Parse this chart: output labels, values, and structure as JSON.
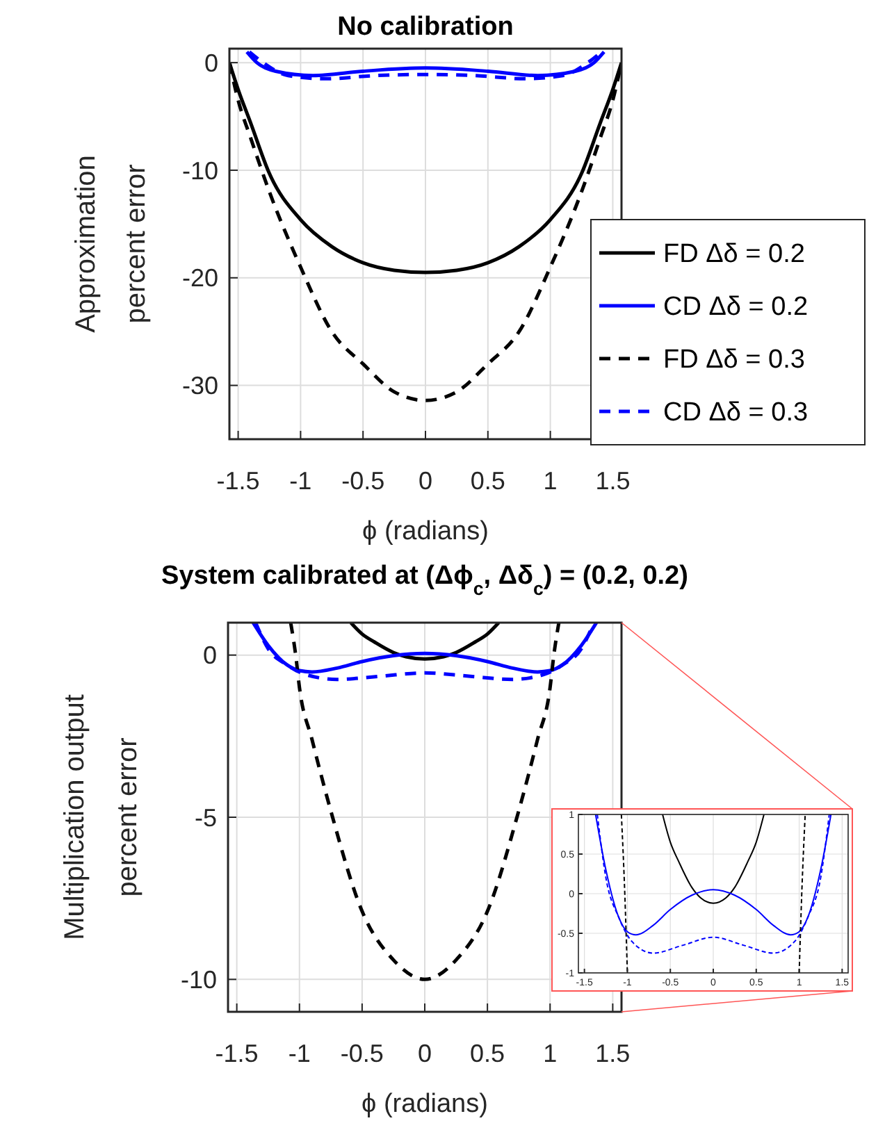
{
  "chart_data": [
    {
      "type": "line",
      "title": "No calibration",
      "xlabel": "ϕ (radians)",
      "ylabel": "Approximation\npercent error",
      "xlim": [
        -1.57,
        1.57
      ],
      "ylim": [
        -35,
        1.3
      ],
      "xticks": [
        -1.5,
        -1,
        -0.5,
        0,
        0.5,
        1,
        1.5
      ],
      "yticks": [
        0,
        -10,
        -20,
        -30
      ],
      "grid": true,
      "legend": "right",
      "series": [
        {
          "name": "FD Δδ = 0.2",
          "color": "#000000",
          "line_style": "solid",
          "x": [
            -1.57,
            -1.5,
            -1.4,
            -1.25,
            -1,
            -0.75,
            -0.5,
            -0.25,
            0,
            0.25,
            0.5,
            0.75,
            1,
            1.25,
            1.4,
            1.5,
            1.57
          ],
          "values": [
            0,
            -2.5,
            -5.6,
            -10.3,
            -14.6,
            -17.1,
            -18.6,
            -19.3,
            -19.5,
            -19.3,
            -18.6,
            -17.1,
            -14.6,
            -10.3,
            -5.6,
            -2.5,
            0
          ]
        },
        {
          "name": "CD Δδ = 0.2",
          "color": "#0000ff",
          "line_style": "solid",
          "x": [
            -1.43,
            -1.35,
            -1.2,
            -0.9,
            -0.5,
            0,
            0.5,
            0.9,
            1.2,
            1.35,
            1.43
          ],
          "values": [
            1,
            0,
            -0.8,
            -1.2,
            -0.8,
            -0.5,
            -0.8,
            -1.2,
            -0.8,
            0,
            1
          ]
        },
        {
          "name": "FD Δδ = 0.3",
          "color": "#000000",
          "line_style": "dashed",
          "x": [
            -1.57,
            -1.5,
            -1.4,
            -1.25,
            -1,
            -0.75,
            -0.5,
            -0.25,
            0,
            0.25,
            0.5,
            0.75,
            1,
            1.25,
            1.4,
            1.5,
            1.57
          ],
          "values": [
            0,
            -3.5,
            -7,
            -12,
            -19,
            -25,
            -28,
            -30.6,
            -31.4,
            -30.6,
            -28,
            -25,
            -19,
            -12,
            -7,
            -3.5,
            0
          ]
        },
        {
          "name": "CD Δδ = 0.3",
          "color": "#0000ff",
          "line_style": "dashed",
          "x": [
            -1.41,
            -1.3,
            -1.1,
            -0.8,
            -0.4,
            0,
            0.4,
            0.8,
            1.1,
            1.3,
            1.41
          ],
          "values": [
            1,
            0,
            -1.2,
            -1.5,
            -1.2,
            -1.1,
            -1.2,
            -1.5,
            -1.2,
            0,
            1
          ]
        }
      ]
    },
    {
      "type": "line",
      "title": "System calibrated at (Δϕ$_{c}$, Δδ$_{c}$) = (0.2, 0.2)",
      "xlabel": "ϕ (radians)",
      "ylabel": "Multiplication output\npercent error",
      "xlim": [
        -1.57,
        1.57
      ],
      "ylim": [
        -11,
        1
      ],
      "xticks": [
        -1.5,
        -1,
        -0.5,
        0,
        0.5,
        1,
        1.5
      ],
      "yticks": [
        0,
        -5,
        -10
      ],
      "grid": true,
      "series": [
        {
          "color": "#000000",
          "line_style": "solid",
          "x": [
            -0.59,
            -0.5,
            -0.4,
            -0.25,
            -0.15,
            0,
            0.15,
            0.25,
            0.4,
            0.5,
            0.59
          ],
          "values": [
            1,
            0.65,
            0.4,
            0.08,
            -0.05,
            -0.12,
            -0.05,
            0.08,
            0.4,
            0.65,
            1
          ]
        },
        {
          "color": "#0000ff",
          "line_style": "solid",
          "x": [
            -1.37,
            -1.25,
            -1.1,
            -1,
            -0.9,
            -0.7,
            -0.5,
            -0.25,
            0,
            0.25,
            0.5,
            0.7,
            0.9,
            1,
            1.1,
            1.25,
            1.37
          ],
          "values": [
            1,
            0.3,
            -0.3,
            -0.48,
            -0.52,
            -0.4,
            -0.2,
            -0.02,
            0.05,
            -0.02,
            -0.2,
            -0.4,
            -0.52,
            -0.48,
            -0.3,
            0.3,
            1
          ]
        },
        {
          "color": "#000000",
          "line_style": "dashed",
          "x": [
            -1.07,
            -1.03,
            -1,
            -0.9,
            -0.75,
            -0.5,
            -0.25,
            0,
            0.25,
            0.5,
            0.75,
            0.9,
            1,
            1.03,
            1.07
          ],
          "values": [
            1,
            0,
            -1,
            -2.6,
            -4.8,
            -7.9,
            -9.4,
            -10,
            -9.4,
            -7.9,
            -4.8,
            -2.6,
            -1,
            0,
            1
          ]
        },
        {
          "color": "#0000ff",
          "line_style": "dashed",
          "x": [
            -1.35,
            -1.25,
            -1.1,
            -0.95,
            -0.7,
            -0.35,
            0,
            0.35,
            0.7,
            0.95,
            1.1,
            1.25,
            1.35
          ],
          "values": [
            1,
            0.2,
            -0.3,
            -0.6,
            -0.75,
            -0.65,
            -0.55,
            -0.65,
            -0.75,
            -0.6,
            -0.3,
            0.2,
            1
          ]
        }
      ]
    },
    {
      "type": "line",
      "xlim": [
        -1.57,
        1.57
      ],
      "ylim": [
        -1,
        1
      ],
      "xticks": [
        -1.5,
        -1,
        -0.5,
        0,
        0.5,
        1,
        1.5
      ],
      "yticks": [
        -1,
        -0.5,
        0,
        0.5,
        1
      ],
      "grid": true,
      "series": [
        {
          "color": "#000000",
          "line_style": "solid",
          "x": [
            -0.59,
            -0.5,
            -0.4,
            -0.25,
            -0.15,
            0,
            0.15,
            0.25,
            0.4,
            0.5,
            0.59
          ],
          "values": [
            1,
            0.65,
            0.4,
            0.08,
            -0.05,
            -0.12,
            -0.05,
            0.08,
            0.4,
            0.65,
            1
          ]
        },
        {
          "color": "#0000ff",
          "line_style": "solid",
          "x": [
            -1.37,
            -1.25,
            -1.1,
            -1,
            -0.9,
            -0.7,
            -0.5,
            -0.25,
            0,
            0.25,
            0.5,
            0.7,
            0.9,
            1,
            1.1,
            1.25,
            1.37
          ],
          "values": [
            1,
            0.3,
            -0.3,
            -0.48,
            -0.52,
            -0.4,
            -0.2,
            -0.02,
            0.05,
            -0.02,
            -0.2,
            -0.4,
            -0.52,
            -0.48,
            -0.3,
            0.3,
            1
          ]
        },
        {
          "color": "#000000",
          "line_style": "dashed",
          "x": [
            -1.07,
            -1.03,
            -1,
            0,
            1,
            1.03,
            1.07
          ],
          "values": [
            1,
            0,
            -1,
            null,
            -1,
            0,
            1
          ]
        },
        {
          "color": "#0000ff",
          "line_style": "dashed",
          "x": [
            -1.35,
            -1.25,
            -1.1,
            -0.95,
            -0.7,
            -0.35,
            0,
            0.35,
            0.7,
            0.95,
            1.1,
            1.25,
            1.35
          ],
          "values": [
            1,
            0.2,
            -0.3,
            -0.6,
            -0.75,
            -0.65,
            -0.55,
            -0.65,
            -0.75,
            -0.6,
            -0.3,
            0.2,
            1
          ]
        }
      ]
    }
  ]
}
